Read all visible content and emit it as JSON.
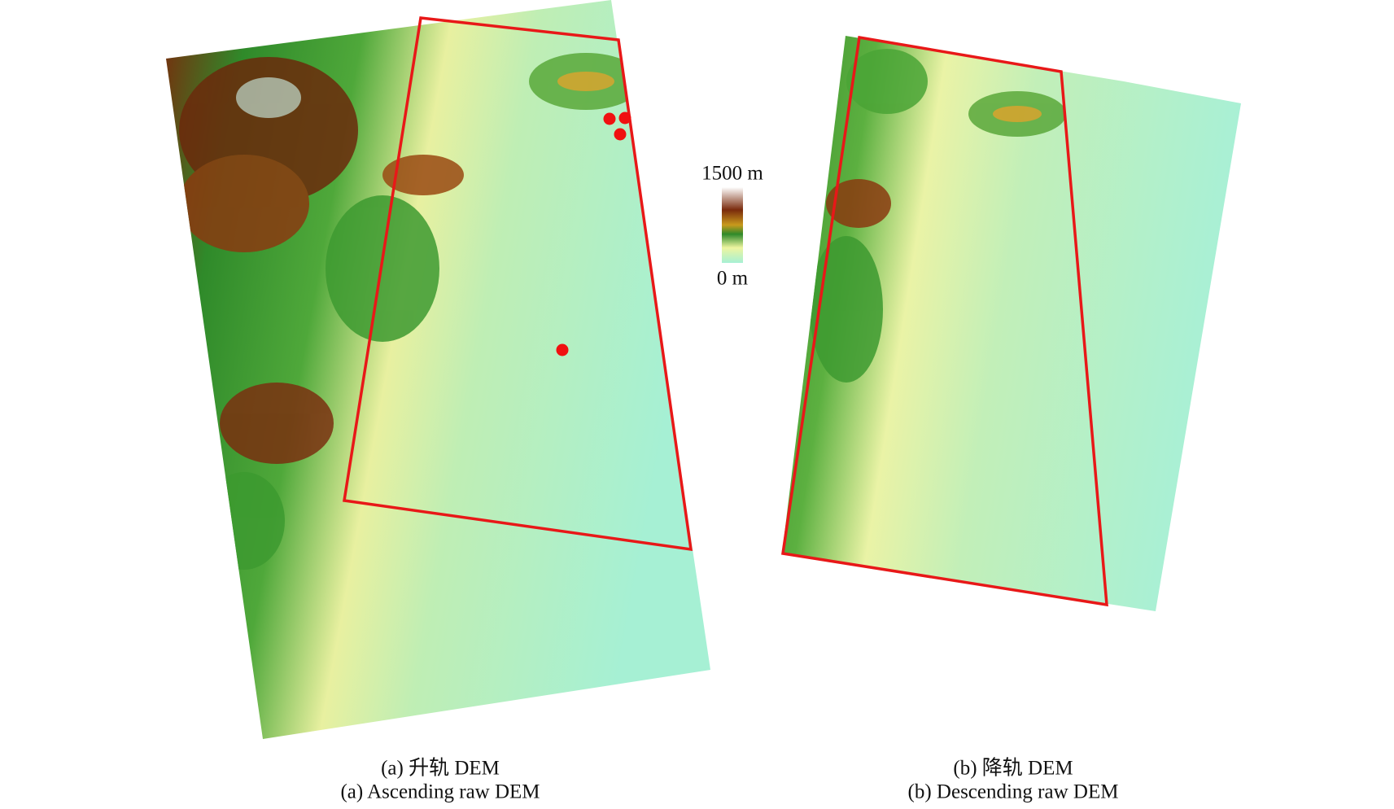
{
  "colorbar": {
    "max_label": "1500 m",
    "min_label": "0 m"
  },
  "panels": [
    {
      "caption_cn": "(a) 升轨 DEM",
      "caption_en": "(a) Ascending raw DEM"
    },
    {
      "caption_cn": "(b) 降轨 DEM",
      "caption_en": "(b) Descending raw DEM"
    }
  ]
}
